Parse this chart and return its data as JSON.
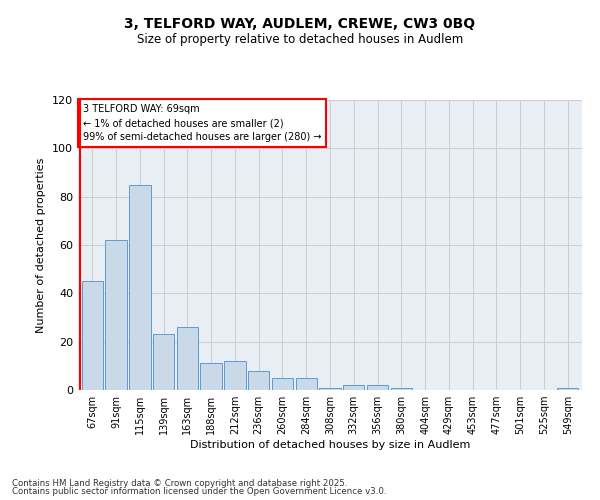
{
  "title": "3, TELFORD WAY, AUDLEM, CREWE, CW3 0BQ",
  "subtitle": "Size of property relative to detached houses in Audlem",
  "xlabel": "Distribution of detached houses by size in Audlem",
  "ylabel": "Number of detached properties",
  "categories": [
    "67sqm",
    "91sqm",
    "115sqm",
    "139sqm",
    "163sqm",
    "188sqm",
    "212sqm",
    "236sqm",
    "260sqm",
    "284sqm",
    "308sqm",
    "332sqm",
    "356sqm",
    "380sqm",
    "404sqm",
    "429sqm",
    "453sqm",
    "477sqm",
    "501sqm",
    "525sqm",
    "549sqm"
  ],
  "values": [
    45,
    62,
    85,
    23,
    26,
    11,
    12,
    8,
    5,
    5,
    1,
    2,
    2,
    1,
    0,
    0,
    0,
    0,
    0,
    0,
    1
  ],
  "bar_color": "#c9d9e8",
  "bar_edge_color": "#5b9bd5",
  "annotation_text": "3 TELFORD WAY: 69sqm\n← 1% of detached houses are smaller (2)\n99% of semi-detached houses are larger (280) →",
  "annotation_box_color": "white",
  "annotation_box_edge": "red",
  "ylim": [
    0,
    120
  ],
  "yticks": [
    0,
    20,
    40,
    60,
    80,
    100,
    120
  ],
  "grid_color": "#cccccc",
  "background_color": "#e8eef4",
  "footer_line1": "Contains HM Land Registry data © Crown copyright and database right 2025.",
  "footer_line2": "Contains public sector information licensed under the Open Government Licence v3.0."
}
